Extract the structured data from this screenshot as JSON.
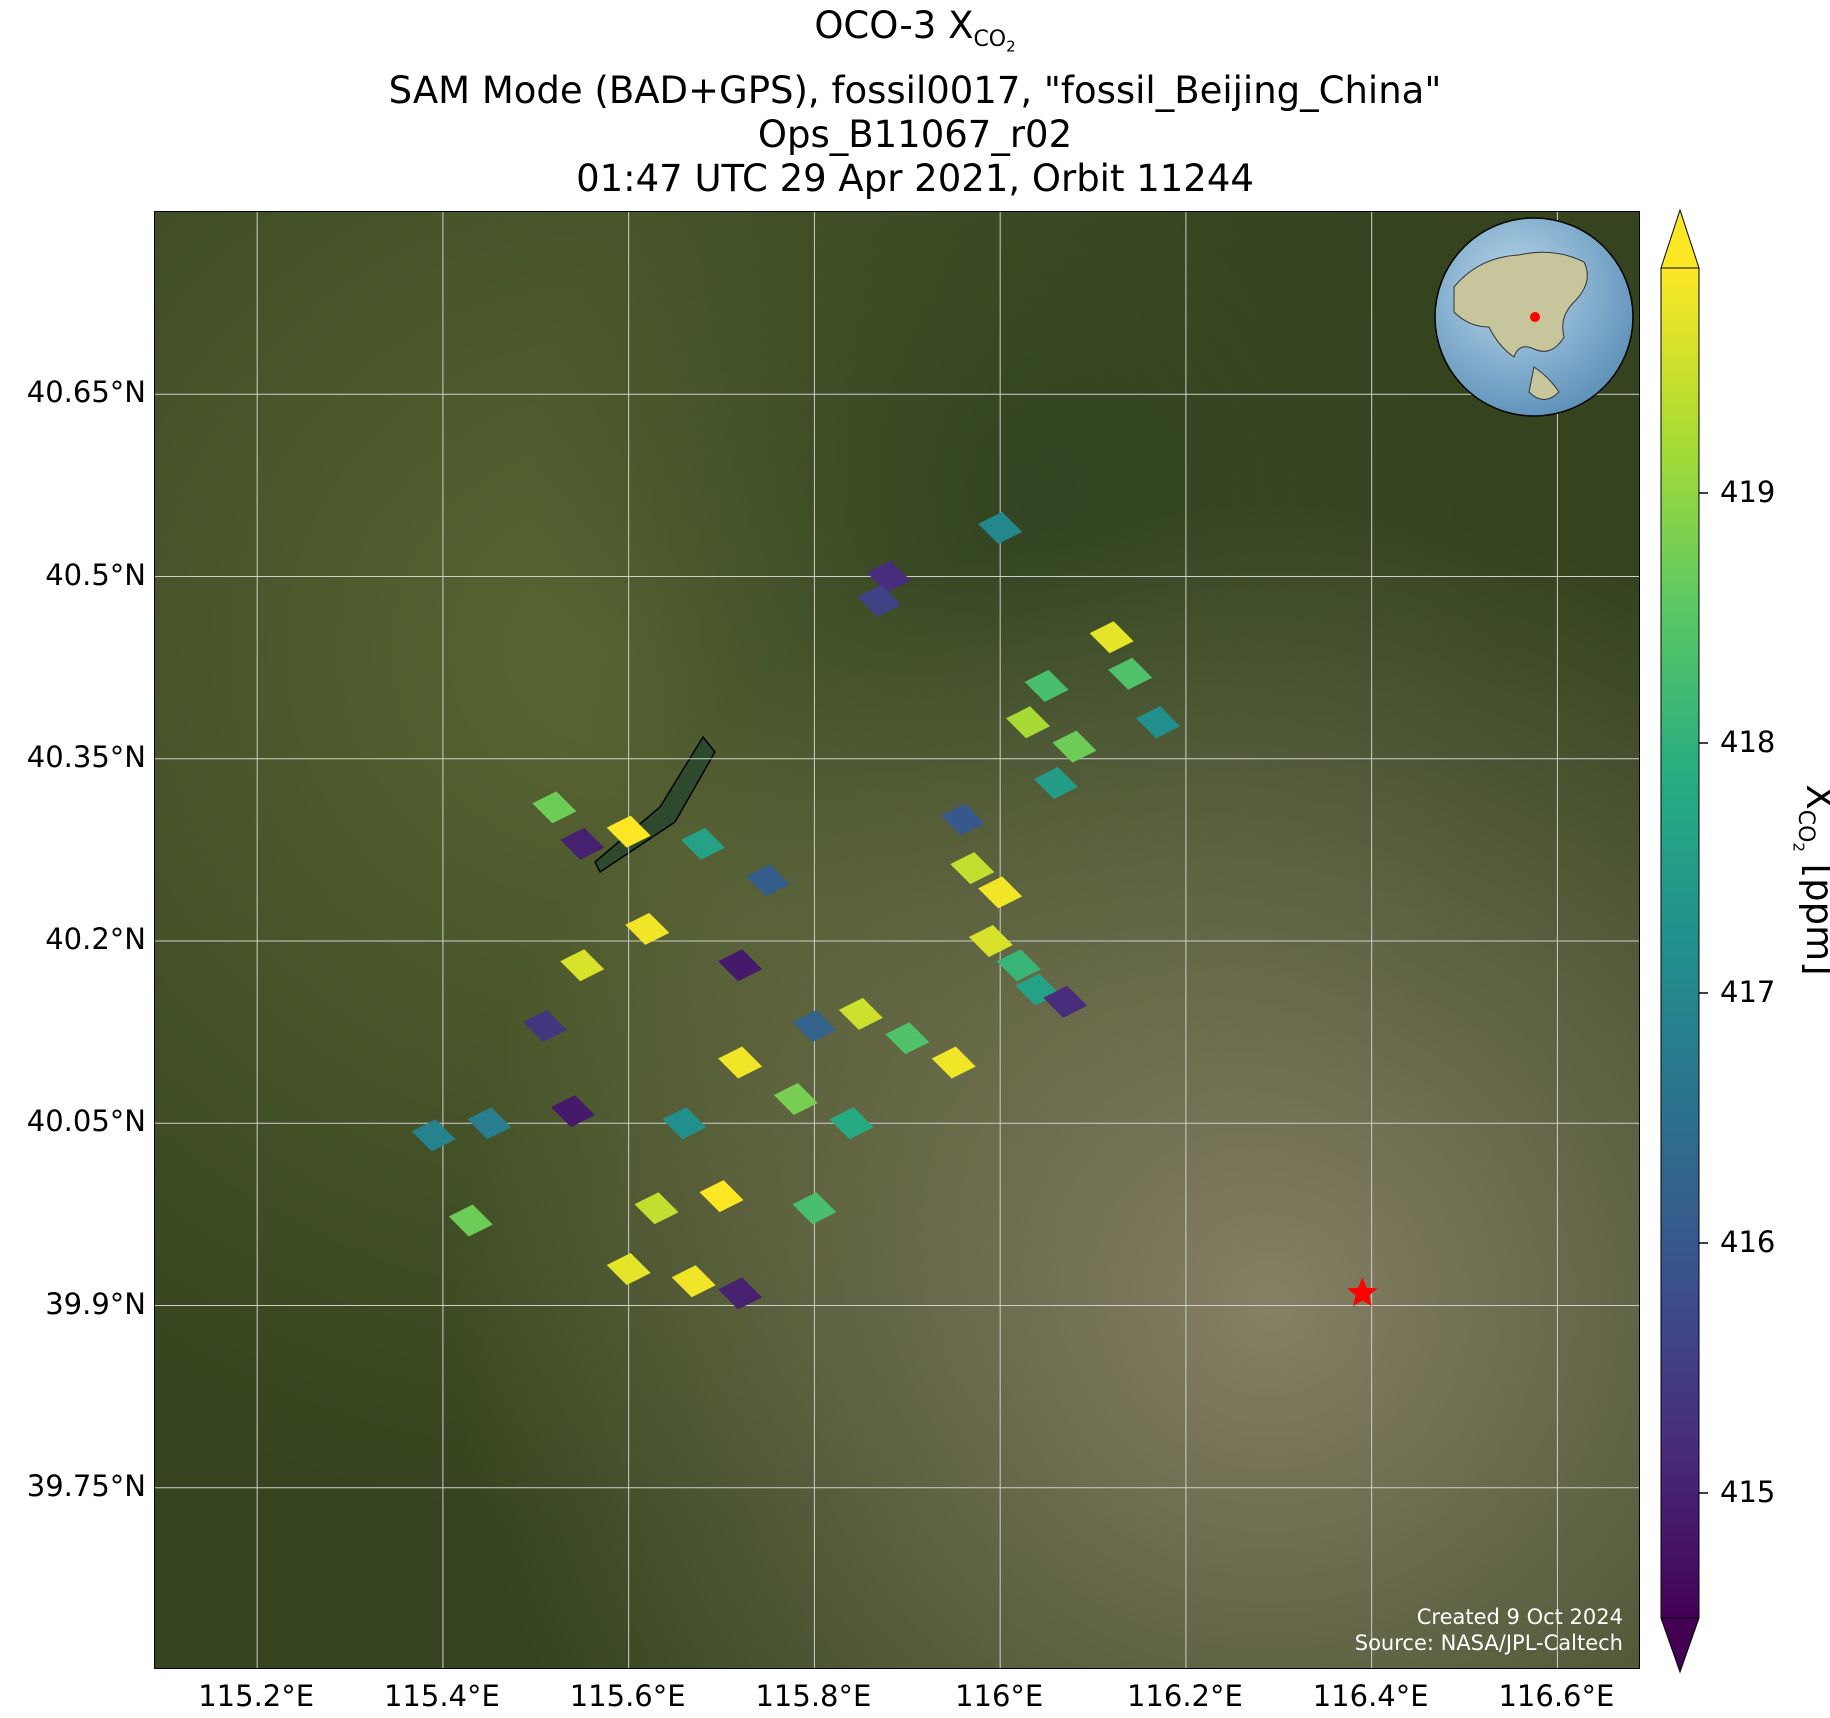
{
  "title": {
    "line1_prefix": "OCO-3 X",
    "line1_sub": "CO",
    "line1_subsub": "2",
    "line2": "SAM Mode (BAD+GPS), fossil0017, \"fossil_Beijing_China\"",
    "line3": "Ops_B11067_r02",
    "line4": "01:47 UTC 29 Apr 2021, Orbit 11244"
  },
  "map": {
    "lon_ticks": [
      "115.2°E",
      "115.4°E",
      "115.6°E",
      "115.8°E",
      "116°E",
      "116.2°E",
      "116.4°E",
      "116.6°E"
    ],
    "lon_values": [
      115.2,
      115.4,
      115.6,
      115.8,
      116.0,
      116.2,
      116.4,
      116.6
    ],
    "lat_ticks": [
      "40.65°N",
      "40.5°N",
      "40.35°N",
      "40.2°N",
      "40.05°N",
      "39.9°N",
      "39.75°N"
    ],
    "lat_values": [
      40.65,
      40.5,
      40.35,
      40.2,
      40.05,
      39.9,
      39.75
    ],
    "lon_range": [
      115.09,
      116.69
    ],
    "lat_range": [
      39.6,
      40.8
    ],
    "grid": true,
    "target_marker": {
      "lon": 116.39,
      "lat": 39.91,
      "symbol": "star",
      "color": "#ff0000"
    },
    "inset": "globe-east-asia-with-red-star",
    "credit_line1": "Created 9 Oct 2024",
    "credit_line2": "Source: NASA/JPL-Caltech"
  },
  "colorbar": {
    "label_prefix": "X",
    "label_sub": "CO",
    "label_subsub": "2",
    "label_suffix": " [ppm]",
    "ticks": [
      "415",
      "416",
      "417",
      "418",
      "419"
    ],
    "tick_values": [
      415,
      416,
      417,
      418,
      419
    ],
    "range": [
      414.5,
      419.9
    ],
    "extend": "both",
    "colormap": "viridis"
  },
  "colors": {
    "viridis_stops": [
      "#440154",
      "#472c7a",
      "#3b518b",
      "#2c718e",
      "#21908d",
      "#27ad81",
      "#5cc863",
      "#aadc32",
      "#fde725"
    ],
    "terrain_dark": "#3a4a26",
    "terrain_mid": "#4f5b30",
    "urban": "#8a8268",
    "grid": "#cfcfcf"
  },
  "chart_data": {
    "type": "scatter",
    "title": "OCO-3 XCO2",
    "xlabel": "",
    "ylabel": "",
    "value_label": "XCO2 [ppm]",
    "xlim": [
      115.09,
      116.69
    ],
    "ylim": [
      39.6,
      40.8
    ],
    "footprints": [
      {
        "lon": 115.88,
        "lat": 40.5,
        "xco2": 415.2
      },
      {
        "lon": 115.87,
        "lat": 40.48,
        "xco2": 415.6
      },
      {
        "lon": 116.0,
        "lat": 40.54,
        "xco2": 417.0
      },
      {
        "lon": 116.12,
        "lat": 40.45,
        "xco2": 419.7
      },
      {
        "lon": 116.14,
        "lat": 40.42,
        "xco2": 418.4
      },
      {
        "lon": 116.17,
        "lat": 40.38,
        "xco2": 417.2
      },
      {
        "lon": 116.05,
        "lat": 40.41,
        "xco2": 418.3
      },
      {
        "lon": 116.03,
        "lat": 40.38,
        "xco2": 419.2
      },
      {
        "lon": 116.08,
        "lat": 40.36,
        "xco2": 418.7
      },
      {
        "lon": 116.06,
        "lat": 40.33,
        "xco2": 417.5
      },
      {
        "lon": 115.96,
        "lat": 40.3,
        "xco2": 416.0
      },
      {
        "lon": 115.97,
        "lat": 40.26,
        "xco2": 419.4
      },
      {
        "lon": 116.0,
        "lat": 40.24,
        "xco2": 419.8
      },
      {
        "lon": 115.99,
        "lat": 40.2,
        "xco2": 419.6
      },
      {
        "lon": 116.02,
        "lat": 40.18,
        "xco2": 418.1
      },
      {
        "lon": 116.04,
        "lat": 40.16,
        "xco2": 417.6
      },
      {
        "lon": 116.07,
        "lat": 40.15,
        "xco2": 415.2
      },
      {
        "lon": 115.55,
        "lat": 40.28,
        "xco2": 415.0
      },
      {
        "lon": 115.6,
        "lat": 40.29,
        "xco2": 419.9
      },
      {
        "lon": 115.68,
        "lat": 40.28,
        "xco2": 417.6
      },
      {
        "lon": 115.75,
        "lat": 40.25,
        "xco2": 416.1
      },
      {
        "lon": 115.52,
        "lat": 40.31,
        "xco2": 418.7
      },
      {
        "lon": 115.62,
        "lat": 40.21,
        "xco2": 419.8
      },
      {
        "lon": 115.55,
        "lat": 40.18,
        "xco2": 419.6
      },
      {
        "lon": 115.72,
        "lat": 40.18,
        "xco2": 414.9
      },
      {
        "lon": 115.8,
        "lat": 40.13,
        "xco2": 416.2
      },
      {
        "lon": 115.85,
        "lat": 40.14,
        "xco2": 419.5
      },
      {
        "lon": 115.9,
        "lat": 40.12,
        "xco2": 418.4
      },
      {
        "lon": 115.95,
        "lat": 40.1,
        "xco2": 419.8
      },
      {
        "lon": 115.72,
        "lat": 40.1,
        "xco2": 419.8
      },
      {
        "lon": 115.78,
        "lat": 40.07,
        "xco2": 418.8
      },
      {
        "lon": 115.84,
        "lat": 40.05,
        "xco2": 417.8
      },
      {
        "lon": 115.66,
        "lat": 40.05,
        "xco2": 417.2
      },
      {
        "lon": 115.7,
        "lat": 39.99,
        "xco2": 419.9
      },
      {
        "lon": 115.63,
        "lat": 39.98,
        "xco2": 419.4
      },
      {
        "lon": 115.8,
        "lat": 39.98,
        "xco2": 418.3
      },
      {
        "lon": 115.6,
        "lat": 39.93,
        "xco2": 419.7
      },
      {
        "lon": 115.67,
        "lat": 39.92,
        "xco2": 419.8
      },
      {
        "lon": 115.72,
        "lat": 39.91,
        "xco2": 415.0
      },
      {
        "lon": 115.45,
        "lat": 40.05,
        "xco2": 416.8
      },
      {
        "lon": 115.39,
        "lat": 40.04,
        "xco2": 416.9
      },
      {
        "lon": 115.43,
        "lat": 39.97,
        "xco2": 418.7
      },
      {
        "lon": 115.54,
        "lat": 40.06,
        "xco2": 414.9
      },
      {
        "lon": 115.51,
        "lat": 40.13,
        "xco2": 415.4
      }
    ]
  }
}
